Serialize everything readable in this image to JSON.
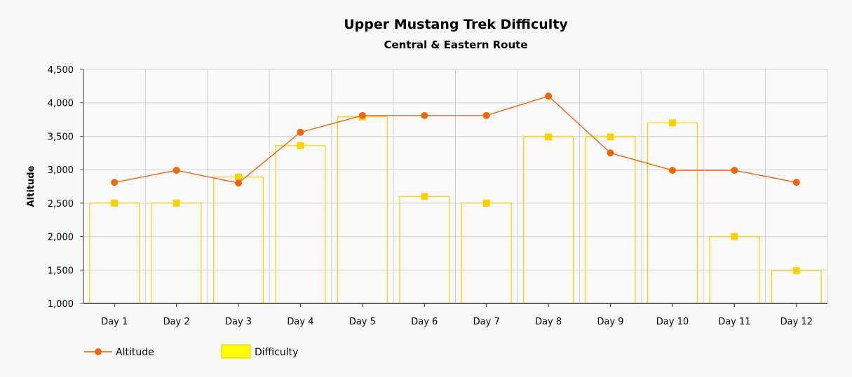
{
  "chart_data": {
    "type": "bar",
    "title": "Upper Mustang Trek Difficulty",
    "subtitle": "Central & Eastern Route",
    "xlabel": "",
    "ylabel": "Altitude",
    "ylim": [
      1000,
      4500
    ],
    "yticks": [
      1000,
      1500,
      2000,
      2500,
      3000,
      3500,
      4000,
      4500
    ],
    "ytick_labels": [
      "1,000",
      "1,500",
      "2,000",
      "2,500",
      "3,000",
      "3,500",
      "4,000",
      "4,500"
    ],
    "categories": [
      "Day 1",
      "Day 2",
      "Day 3",
      "Day 4",
      "Day 5",
      "Day 6",
      "Day 7",
      "Day 8",
      "Day 9",
      "Day 10",
      "Day 11",
      "Day 12"
    ],
    "grid": true,
    "legend_position": "bottom-left",
    "series": [
      {
        "name": "Altitude",
        "type": "line",
        "color": "#f0660d",
        "marker": "circle",
        "values": [
          2810,
          2990,
          2800,
          3560,
          3810,
          3810,
          3810,
          4100,
          3250,
          2990,
          2990,
          2810
        ]
      },
      {
        "name": "Difficulty",
        "type": "bar",
        "color": "#ffd000",
        "legend_fill": "#ffff00",
        "marker": "square",
        "values": [
          2500,
          2500,
          2890,
          3360,
          3790,
          2600,
          2500,
          3490,
          3490,
          3700,
          2000,
          1490
        ]
      }
    ]
  }
}
